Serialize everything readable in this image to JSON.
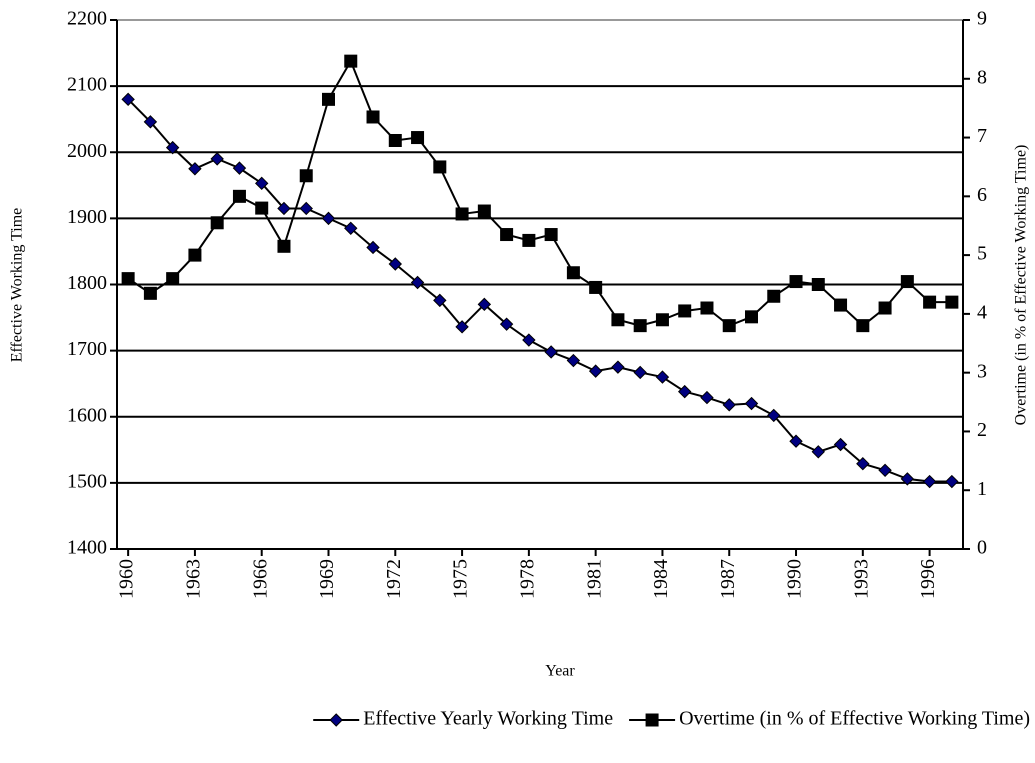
{
  "chart_data": {
    "type": "line",
    "x_label": "Year",
    "y_label": "Effective Working Time",
    "y2_label": "Overtime (in % of Effective Working Time)",
    "x": [
      1960,
      1961,
      1962,
      1963,
      1964,
      1965,
      1966,
      1967,
      1968,
      1969,
      1970,
      1971,
      1972,
      1973,
      1974,
      1975,
      1976,
      1977,
      1978,
      1979,
      1980,
      1981,
      1982,
      1983,
      1984,
      1985,
      1986,
      1987,
      1988,
      1989,
      1990,
      1991,
      1992,
      1993,
      1994,
      1995,
      1996,
      1997
    ],
    "xlim": [
      1959.5,
      1997.5
    ],
    "xticks": [
      1960,
      1963,
      1966,
      1969,
      1972,
      1975,
      1978,
      1981,
      1984,
      1987,
      1990,
      1993,
      1996
    ],
    "ylim": [
      1400,
      2200
    ],
    "yticks": [
      1400,
      1500,
      1600,
      1700,
      1800,
      1900,
      2000,
      2100,
      2200
    ],
    "y2lim": [
      0,
      9
    ],
    "y2ticks": [
      0,
      1,
      2,
      3,
      4,
      5,
      6,
      7,
      8,
      9
    ],
    "grid": true,
    "legend": "bottom",
    "series": [
      {
        "name": "Effective Yearly Working Time",
        "color": "#000080",
        "marker": "diamond",
        "values": [
          2080,
          2046,
          2007,
          1975,
          1990,
          1976,
          1953,
          1915,
          1915,
          1900,
          1885,
          1856,
          1831,
          1803,
          1776,
          1736,
          1770,
          1740,
          1716,
          1698,
          1685,
          1669,
          1675,
          1667,
          1660,
          1638,
          1629,
          1618,
          1620,
          1602,
          1563,
          1547,
          1558,
          1529,
          1519,
          1506,
          1502,
          1502
        ]
      },
      {
        "name": "Overtime (in % of Effective Working Time)",
        "color": "#000000",
        "marker": "square",
        "axis": "y2",
        "values": [
          4.6,
          4.35,
          4.6,
          5.0,
          5.55,
          6.0,
          5.8,
          5.15,
          6.35,
          7.65,
          8.3,
          7.35,
          6.95,
          7.0,
          6.5,
          5.7,
          5.75,
          5.35,
          5.25,
          5.35,
          4.7,
          4.45,
          3.9,
          3.8,
          3.9,
          4.05,
          4.1,
          3.8,
          3.95,
          4.3,
          4.55,
          4.5,
          4.15,
          3.8,
          4.1,
          4.55,
          4.2,
          4.2
        ]
      }
    ]
  }
}
